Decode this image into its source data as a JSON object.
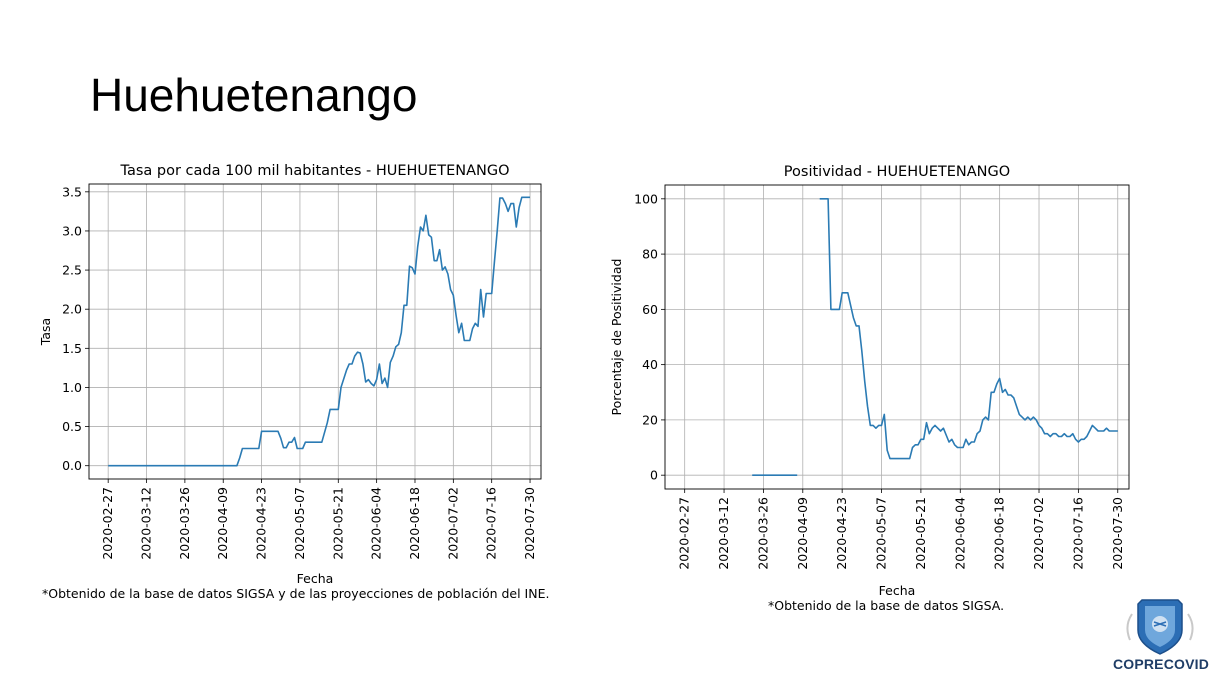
{
  "slide": {
    "title": "Huehuetenango",
    "brand": "COPRECOVID"
  },
  "notes": {
    "left": "*Obtenido de la base de datos SIGSA y de las proyecciones de población del INE.",
    "right": "*Obtenido de la base de datos SIGSA."
  },
  "chart_data": [
    {
      "type": "line",
      "title": "Tasa por cada 100 mil habitantes - HUEHUETENANGO",
      "xlabel": "Fecha",
      "ylabel": "Tasa",
      "x_start": "2020-02-27",
      "x_end": "2020-07-30",
      "xlim": [
        "2020-02-20",
        "2020-08-03"
      ],
      "ylim": [
        -0.17,
        3.6
      ],
      "xticks": [
        "2020-02-27",
        "2020-03-12",
        "2020-03-26",
        "2020-04-09",
        "2020-04-23",
        "2020-05-07",
        "2020-05-21",
        "2020-06-04",
        "2020-06-18",
        "2020-07-02",
        "2020-07-16",
        "2020-07-30"
      ],
      "yticks": [
        0.0,
        0.5,
        1.0,
        1.5,
        2.0,
        2.5,
        3.0,
        3.5
      ],
      "ytick_labels": [
        "0.0",
        "0.5",
        "1.0",
        "1.5",
        "2.0",
        "2.5",
        "3.0",
        "3.5"
      ],
      "grid": true,
      "color": "#2b7bb4",
      "series": [
        {
          "x": [
            "2020-02-27",
            "2020-04-14",
            "2020-04-15",
            "2020-04-16",
            "2020-04-22",
            "2020-04-23",
            "2020-04-29",
            "2020-04-30",
            "2020-05-01",
            "2020-05-02",
            "2020-05-03",
            "2020-05-04",
            "2020-05-05",
            "2020-05-06",
            "2020-05-07",
            "2020-05-08",
            "2020-05-09",
            "2020-05-15",
            "2020-05-17",
            "2020-05-18",
            "2020-05-20",
            "2020-05-21",
            "2020-05-22",
            "2020-05-24",
            "2020-05-25",
            "2020-05-26",
            "2020-05-27",
            "2020-05-28",
            "2020-05-29",
            "2020-05-30",
            "2020-05-31",
            "2020-06-01",
            "2020-06-02",
            "2020-06-03",
            "2020-06-04",
            "2020-06-05",
            "2020-06-06",
            "2020-06-07",
            "2020-06-08",
            "2020-06-09",
            "2020-06-10",
            "2020-06-11",
            "2020-06-12",
            "2020-06-13",
            "2020-06-14",
            "2020-06-15",
            "2020-06-16",
            "2020-06-17",
            "2020-06-18",
            "2020-06-19",
            "2020-06-20",
            "2020-06-21",
            "2020-06-22",
            "2020-06-23",
            "2020-06-24",
            "2020-06-25",
            "2020-06-26",
            "2020-06-27",
            "2020-06-28",
            "2020-06-29",
            "2020-06-30",
            "2020-07-01",
            "2020-07-02",
            "2020-07-03",
            "2020-07-04",
            "2020-07-05",
            "2020-07-06",
            "2020-07-07",
            "2020-07-08",
            "2020-07-09",
            "2020-07-10",
            "2020-07-11",
            "2020-07-12",
            "2020-07-13",
            "2020-07-14",
            "2020-07-15",
            "2020-07-16",
            "2020-07-17",
            "2020-07-18",
            "2020-07-19",
            "2020-07-20",
            "2020-07-21",
            "2020-07-22",
            "2020-07-23",
            "2020-07-24",
            "2020-07-25",
            "2020-07-26",
            "2020-07-27",
            "2020-07-28",
            "2020-07-29",
            "2020-07-30"
          ],
          "y": [
            0,
            0,
            0.1,
            0.22,
            0.22,
            0.44,
            0.44,
            0.35,
            0.23,
            0.23,
            0.3,
            0.3,
            0.36,
            0.22,
            0.22,
            0.22,
            0.3,
            0.3,
            0.55,
            0.72,
            0.72,
            0.72,
            1.0,
            1.22,
            1.3,
            1.3,
            1.4,
            1.45,
            1.44,
            1.3,
            1.07,
            1.1,
            1.05,
            1.02,
            1.1,
            1.3,
            1.05,
            1.12,
            1.0,
            1.32,
            1.4,
            1.52,
            1.55,
            1.7,
            2.05,
            2.05,
            2.55,
            2.53,
            2.45,
            2.8,
            3.05,
            3.0,
            3.2,
            2.95,
            2.92,
            2.62,
            2.62,
            2.76,
            2.5,
            2.54,
            2.45,
            2.25,
            2.18,
            1.92,
            1.7,
            1.82,
            1.6,
            1.6,
            1.6,
            1.75,
            1.82,
            1.78,
            2.25,
            1.9,
            2.2,
            2.2,
            2.2,
            2.6,
            3.0,
            3.42,
            3.42,
            3.35,
            3.25,
            3.35,
            3.35,
            3.05,
            3.3,
            3.43,
            3.43,
            3.43,
            3.43
          ]
        }
      ]
    },
    {
      "type": "line",
      "title": "Positividad - HUEHUETENANGO",
      "xlabel": "Fecha",
      "ylabel": "Porcentaje de Positividad",
      "x_start": "2020-02-27",
      "x_end": "2020-07-30",
      "xlim": [
        "2020-02-20",
        "2020-08-03"
      ],
      "ylim": [
        -5,
        105
      ],
      "xticks": [
        "2020-02-27",
        "2020-03-12",
        "2020-03-26",
        "2020-04-09",
        "2020-04-23",
        "2020-05-07",
        "2020-05-21",
        "2020-06-04",
        "2020-06-18",
        "2020-07-02",
        "2020-07-16",
        "2020-07-30"
      ],
      "yticks": [
        0,
        20,
        40,
        60,
        80,
        100
      ],
      "ytick_labels": [
        "0",
        "20",
        "40",
        "60",
        "80",
        "100"
      ],
      "grid": true,
      "color": "#2b7bb4",
      "series": [
        {
          "x": [
            "2020-03-22",
            "2020-04-07"
          ],
          "y": [
            0,
            0
          ]
        },
        {
          "x": [
            "2020-04-15",
            "2020-04-18",
            "2020-04-19",
            "2020-04-22",
            "2020-04-23",
            "2020-04-25",
            "2020-04-27",
            "2020-04-28",
            "2020-04-29",
            "2020-04-30",
            "2020-05-01",
            "2020-05-02",
            "2020-05-03",
            "2020-05-04",
            "2020-05-05",
            "2020-05-06",
            "2020-05-07",
            "2020-05-08",
            "2020-05-09",
            "2020-05-10",
            "2020-05-13",
            "2020-05-14",
            "2020-05-15",
            "2020-05-17",
            "2020-05-18",
            "2020-05-19",
            "2020-05-20",
            "2020-05-21",
            "2020-05-22",
            "2020-05-23",
            "2020-05-24",
            "2020-05-25",
            "2020-05-26",
            "2020-05-27",
            "2020-05-28",
            "2020-05-29",
            "2020-05-31",
            "2020-06-01",
            "2020-06-02",
            "2020-06-03",
            "2020-06-04",
            "2020-06-05",
            "2020-06-06",
            "2020-06-07",
            "2020-06-08",
            "2020-06-09",
            "2020-06-10",
            "2020-06-11",
            "2020-06-12",
            "2020-06-13",
            "2020-06-14",
            "2020-06-15",
            "2020-06-16",
            "2020-06-17",
            "2020-06-18",
            "2020-06-19",
            "2020-06-20",
            "2020-06-21",
            "2020-06-22",
            "2020-06-23",
            "2020-06-24",
            "2020-06-25",
            "2020-06-26",
            "2020-06-27",
            "2020-06-28",
            "2020-06-29",
            "2020-06-30",
            "2020-07-01",
            "2020-07-02",
            "2020-07-03",
            "2020-07-04",
            "2020-07-05",
            "2020-07-06",
            "2020-07-07",
            "2020-07-08",
            "2020-07-09",
            "2020-07-10",
            "2020-07-11",
            "2020-07-12",
            "2020-07-13",
            "2020-07-14",
            "2020-07-15",
            "2020-07-16",
            "2020-07-17",
            "2020-07-18",
            "2020-07-19",
            "2020-07-20",
            "2020-07-21",
            "2020-07-22",
            "2020-07-23",
            "2020-07-24",
            "2020-07-25",
            "2020-07-26",
            "2020-07-27",
            "2020-07-28",
            "2020-07-29",
            "2020-07-30"
          ],
          "y": [
            100,
            100,
            60,
            60,
            66,
            66,
            57,
            54,
            54,
            45,
            34,
            25,
            18,
            18,
            17,
            18,
            18,
            22,
            9,
            6,
            6,
            6,
            6,
            6,
            10,
            11,
            11,
            13,
            13,
            19,
            15,
            17,
            18,
            17,
            16,
            17,
            12,
            13,
            11,
            10,
            10,
            10,
            13,
            11,
            12,
            12,
            15,
            16,
            20,
            21,
            20,
            30,
            30,
            33,
            35,
            30,
            31,
            29,
            29,
            28,
            25,
            22,
            21,
            20,
            21,
            20,
            21,
            20,
            18,
            17,
            15,
            15,
            14,
            15,
            15,
            14,
            14,
            15,
            14,
            14,
            15,
            13,
            12,
            13,
            13,
            14,
            16,
            18,
            17,
            16,
            16,
            16,
            17,
            16,
            16,
            16,
            16
          ]
        }
      ]
    }
  ]
}
